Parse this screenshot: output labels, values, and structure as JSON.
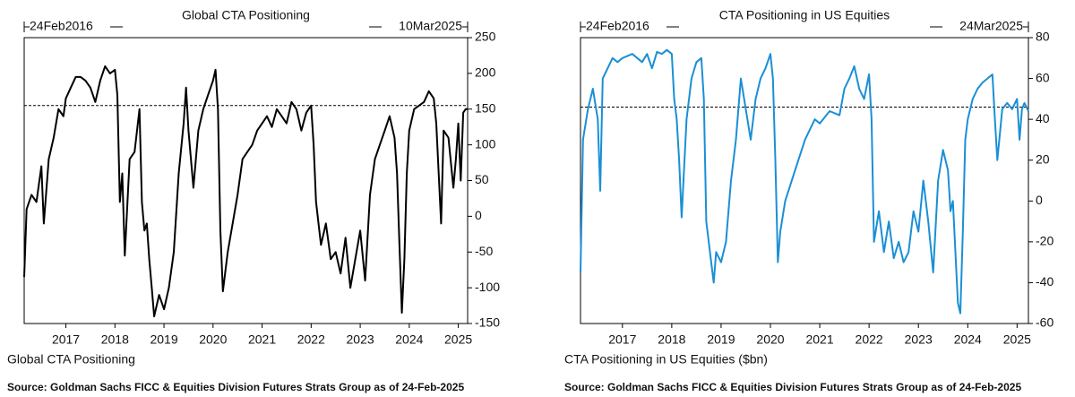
{
  "chart_data": [
    {
      "type": "line",
      "title": "Global CTA Positioning",
      "start_label": "24Feb2016",
      "end_label": "10Mar2025",
      "source": "Source: Goldman Sachs FICC & Equities Division Futures Strats Group as of 24-Feb-2025",
      "xlim": [
        2016.15,
        2025.19
      ],
      "xticks": [
        2017,
        2018,
        2019,
        2020,
        2021,
        2022,
        2023,
        2024,
        2025
      ],
      "ylim": [
        -150,
        250
      ],
      "yticks": [
        250,
        200,
        150,
        100,
        50,
        0,
        -50,
        -100,
        -150
      ],
      "ref_line": 155,
      "x": [
        2016.15,
        2016.2,
        2016.3,
        2016.4,
        2016.5,
        2016.55,
        2016.65,
        2016.75,
        2016.85,
        2016.95,
        2017.0,
        2017.1,
        2017.2,
        2017.3,
        2017.4,
        2017.5,
        2017.6,
        2017.7,
        2017.8,
        2017.9,
        2018.0,
        2018.05,
        2018.1,
        2018.15,
        2018.2,
        2018.3,
        2018.4,
        2018.5,
        2018.55,
        2018.6,
        2018.65,
        2018.7,
        2018.75,
        2018.8,
        2018.9,
        2019.0,
        2019.1,
        2019.2,
        2019.3,
        2019.4,
        2019.45,
        2019.5,
        2019.6,
        2019.7,
        2019.8,
        2019.9,
        2020.0,
        2020.05,
        2020.1,
        2020.15,
        2020.2,
        2020.3,
        2020.4,
        2020.5,
        2020.6,
        2020.7,
        2020.8,
        2020.9,
        2021.0,
        2021.1,
        2021.2,
        2021.3,
        2021.4,
        2021.5,
        2021.6,
        2021.7,
        2021.8,
        2021.9,
        2022.0,
        2022.05,
        2022.1,
        2022.2,
        2022.3,
        2022.4,
        2022.5,
        2022.6,
        2022.7,
        2022.8,
        2022.9,
        2023.0,
        2023.1,
        2023.2,
        2023.3,
        2023.4,
        2023.5,
        2023.6,
        2023.7,
        2023.75,
        2023.8,
        2023.85,
        2023.9,
        2023.95,
        2024.0,
        2024.1,
        2024.2,
        2024.3,
        2024.4,
        2024.5,
        2024.55,
        2024.6,
        2024.65,
        2024.7,
        2024.8,
        2024.9,
        2024.95,
        2025.0,
        2025.05,
        2025.1,
        2025.15,
        2025.19
      ],
      "series": [
        {
          "name": "Global CTA Positioning",
          "color": "#000000",
          "values": [
            -85,
            10,
            30,
            20,
            70,
            -10,
            80,
            110,
            150,
            140,
            165,
            180,
            195,
            195,
            190,
            180,
            160,
            190,
            210,
            200,
            205,
            170,
            20,
            60,
            -55,
            80,
            90,
            150,
            20,
            -20,
            -10,
            -60,
            -100,
            -140,
            -110,
            -130,
            -100,
            -50,
            60,
            130,
            180,
            120,
            40,
            120,
            150,
            170,
            190,
            205,
            150,
            -20,
            -105,
            -50,
            -10,
            30,
            80,
            90,
            100,
            120,
            130,
            140,
            125,
            150,
            140,
            130,
            160,
            150,
            120,
            145,
            155,
            100,
            20,
            -40,
            -10,
            -60,
            -50,
            -80,
            -30,
            -100,
            -60,
            -20,
            -90,
            30,
            80,
            100,
            120,
            140,
            110,
            60,
            -40,
            -135,
            -60,
            60,
            120,
            150,
            155,
            160,
            175,
            165,
            130,
            60,
            -10,
            120,
            110,
            40,
            80,
            130,
            50,
            145,
            150,
            150
          ]
        }
      ]
    },
    {
      "type": "line",
      "title": "CTA Positioning in US Equities",
      "start_label": "24Feb2016",
      "end_label": "24Mar2025",
      "source": "Source: Goldman Sachs FICC & Equities Division Futures Strats Group as of 24-Feb-2025",
      "xlim": [
        2016.15,
        2025.23
      ],
      "xticks": [
        2017,
        2018,
        2019,
        2020,
        2021,
        2022,
        2023,
        2024,
        2025
      ],
      "ylim": [
        -60,
        80
      ],
      "yticks": [
        80,
        60,
        40,
        20,
        0,
        -20,
        -40,
        -60
      ],
      "ref_line": 46,
      "x": [
        2016.15,
        2016.2,
        2016.3,
        2016.4,
        2016.5,
        2016.55,
        2016.6,
        2016.7,
        2016.8,
        2016.9,
        2017.0,
        2017.2,
        2017.4,
        2017.5,
        2017.6,
        2017.7,
        2017.8,
        2017.9,
        2018.0,
        2018.05,
        2018.1,
        2018.15,
        2018.2,
        2018.3,
        2018.4,
        2018.5,
        2018.6,
        2018.65,
        2018.7,
        2018.8,
        2018.85,
        2018.9,
        2019.0,
        2019.1,
        2019.2,
        2019.3,
        2019.4,
        2019.5,
        2019.6,
        2019.7,
        2019.8,
        2019.9,
        2020.0,
        2020.05,
        2020.1,
        2020.15,
        2020.2,
        2020.3,
        2020.5,
        2020.7,
        2020.9,
        2021.0,
        2021.2,
        2021.4,
        2021.5,
        2021.6,
        2021.7,
        2021.8,
        2021.9,
        2022.0,
        2022.05,
        2022.1,
        2022.2,
        2022.3,
        2022.4,
        2022.5,
        2022.6,
        2022.7,
        2022.8,
        2022.9,
        2023.0,
        2023.1,
        2023.2,
        2023.3,
        2023.4,
        2023.5,
        2023.6,
        2023.65,
        2023.7,
        2023.8,
        2023.85,
        2023.9,
        2023.95,
        2024.0,
        2024.1,
        2024.2,
        2024.3,
        2024.4,
        2024.5,
        2024.55,
        2024.6,
        2024.7,
        2024.8,
        2024.9,
        2025.0,
        2025.05,
        2025.1,
        2025.15,
        2025.23
      ],
      "series": [
        {
          "name": "CTA Positioning in US Equities ($bn)",
          "color": "#1a8fd6",
          "values": [
            -35,
            30,
            45,
            55,
            40,
            5,
            60,
            65,
            70,
            68,
            70,
            72,
            68,
            72,
            65,
            73,
            72,
            74,
            72,
            50,
            40,
            20,
            -8,
            40,
            60,
            68,
            70,
            50,
            -10,
            -30,
            -40,
            -25,
            -30,
            -20,
            10,
            30,
            60,
            45,
            30,
            50,
            60,
            65,
            72,
            60,
            20,
            -30,
            -15,
            0,
            15,
            30,
            40,
            38,
            44,
            42,
            55,
            60,
            66,
            55,
            50,
            62,
            40,
            -20,
            -5,
            -25,
            -10,
            -28,
            -20,
            -30,
            -25,
            -5,
            -15,
            10,
            -10,
            -35,
            10,
            25,
            15,
            -5,
            0,
            -50,
            -55,
            -15,
            30,
            40,
            50,
            55,
            58,
            60,
            62,
            40,
            20,
            45,
            48,
            45,
            50,
            30,
            45,
            48,
            44
          ]
        }
      ]
    }
  ]
}
